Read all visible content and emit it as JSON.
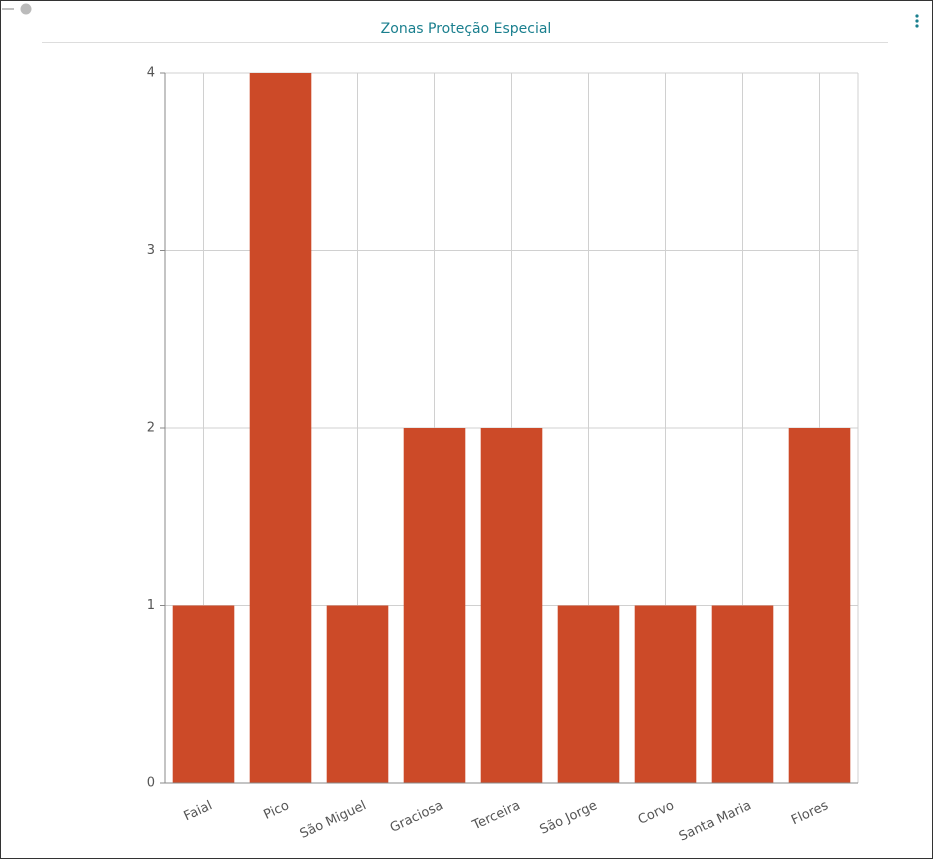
{
  "chart_data": {
    "type": "bar",
    "title": "Zonas Proteção Especial",
    "categories": [
      "Faial",
      "Pico",
      "São Miguel",
      "Graciosa",
      "Terceira",
      "São Jorge",
      "Corvo",
      "Santa Maria",
      "Flores"
    ],
    "values": [
      1,
      4,
      1,
      2,
      2,
      1,
      1,
      1,
      2
    ],
    "color": "#cc4a28",
    "ylim": [
      0,
      4
    ],
    "yticks": [
      0,
      1,
      2,
      3,
      4
    ],
    "grid": true
  }
}
